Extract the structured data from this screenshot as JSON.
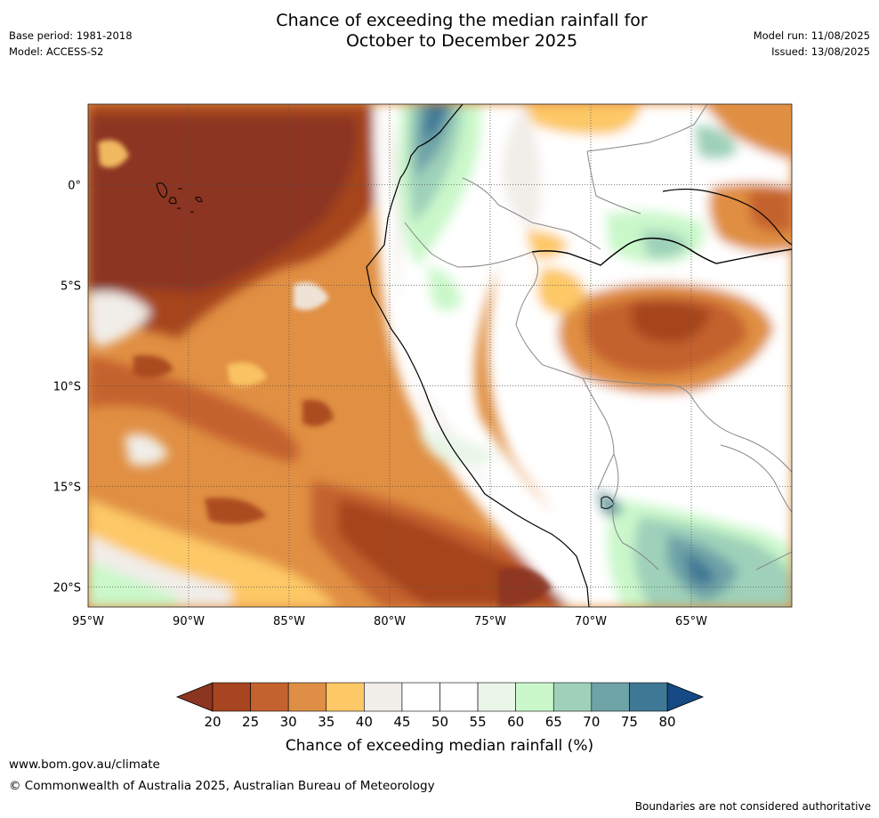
{
  "header": {
    "title_line1": "Chance of exceeding the median rainfall for",
    "title_line2": "October to December 2025",
    "base_period": "Base period: 1981-2018",
    "model": "Model: ACCESS-S2",
    "model_run": "Model run: 11/08/2025",
    "issued": "Issued: 13/08/2025"
  },
  "map": {
    "extent": {
      "lon_min": -95,
      "lon_max": -60,
      "lat_min": -21,
      "lat_max": 4
    },
    "lat_ticks": [
      {
        "value": 0,
        "label": "0°"
      },
      {
        "value": -5,
        "label": "5°S"
      },
      {
        "value": -10,
        "label": "10°S"
      },
      {
        "value": -15,
        "label": "15°S"
      },
      {
        "value": -20,
        "label": "20°S"
      }
    ],
    "lon_ticks": [
      {
        "value": -95,
        "label": "95°W"
      },
      {
        "value": -90,
        "label": "90°W"
      },
      {
        "value": -85,
        "label": "85°W"
      },
      {
        "value": -80,
        "label": "80°W"
      },
      {
        "value": -75,
        "label": "75°W"
      },
      {
        "value": -70,
        "label": "70°W"
      },
      {
        "value": -65,
        "label": "65°W"
      }
    ],
    "grid": true,
    "colors": {
      "ocean_base": "#e08f43",
      "coast": "#000000",
      "borders": "#888888"
    }
  },
  "colorbar": {
    "title": "Chance of exceeding median rainfall (%)",
    "ticks": [
      "20",
      "25",
      "30",
      "35",
      "40",
      "45",
      "50",
      "55",
      "60",
      "65",
      "70",
      "75",
      "80"
    ],
    "colors": [
      "#a6451f",
      "#c4622f",
      "#de8f45",
      "#fdc866",
      "#f1ede8",
      "#ffffff",
      "#ffffff",
      "#e9f6e8",
      "#caf8ca",
      "#9fd1ba",
      "#6ea3a7",
      "#3f7895"
    ],
    "under_color": "#8c3520",
    "over_color": "#154a84"
  },
  "footer": {
    "url": "www.bom.gov.au/climate",
    "copyright": "© Commonwealth of Australia 2025, Australian Bureau of Meteorology",
    "disclaimer": "Boundaries are not considered authoritative"
  }
}
